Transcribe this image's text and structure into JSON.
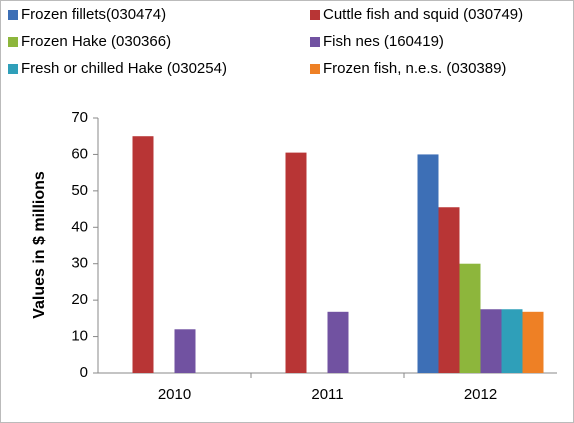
{
  "chart_data": {
    "type": "bar",
    "y_label": "Values in $ millions",
    "categories": [
      "2010",
      "2011",
      "2012"
    ],
    "series": [
      {
        "name": "Frozen fillets(030474)",
        "color": "#3d6fb6",
        "values": [
          null,
          null,
          60
        ]
      },
      {
        "name": "Cuttle fish and squid (030749)",
        "color": "#b83535",
        "values": [
          65,
          60.5,
          45.5
        ]
      },
      {
        "name": "Frozen Hake (030366)",
        "color": "#8db63c",
        "values": [
          null,
          null,
          30
        ]
      },
      {
        "name": "Fish nes (160419)",
        "color": "#7152a1",
        "values": [
          12,
          16.8,
          17.5
        ]
      },
      {
        "name": "Fresh or chilled Hake (030254)",
        "color": "#2f9fb9",
        "values": [
          null,
          null,
          17.5
        ]
      },
      {
        "name": "Frozen fish, n.e.s. (030389)",
        "color": "#ee8025",
        "values": [
          null,
          null,
          16.8
        ]
      }
    ],
    "ylim": [
      0,
      70
    ],
    "yticks": [
      0,
      10,
      20,
      30,
      40,
      50,
      60,
      70
    ],
    "grid": false
  }
}
